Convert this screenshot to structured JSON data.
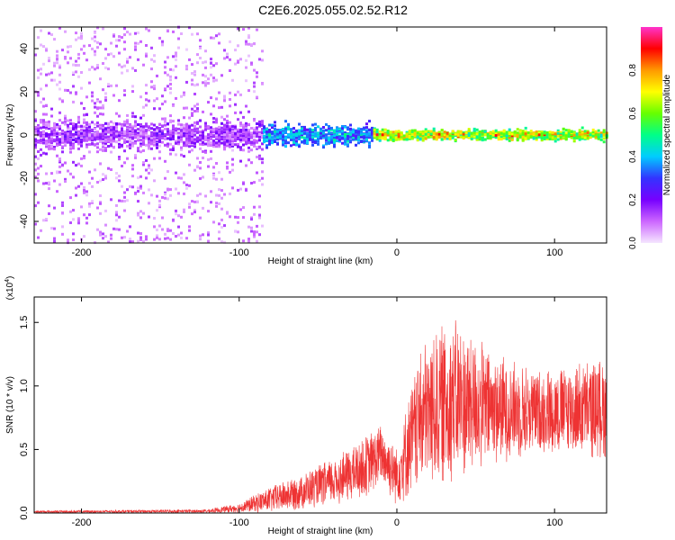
{
  "title": "C2E6.2025.055.02.52.R12",
  "chart_data": [
    {
      "type": "heatmap",
      "xlabel": "Height of straight line (km)",
      "ylabel": "Frequency (Hz)",
      "xlim": [
        -230,
        133
      ],
      "ylim": [
        -50,
        50
      ],
      "xticks": [
        -200,
        -100,
        0,
        100
      ],
      "xtick_labels": [
        "-200",
        "-100",
        "0",
        "100"
      ],
      "yticks": [
        -40,
        -20,
        0,
        20,
        40
      ],
      "ytick_labels": [
        "-40",
        "-20",
        "0",
        "20",
        "40"
      ],
      "colorbar": {
        "label": "Normalized spectral amplitude",
        "range": [
          0,
          1
        ],
        "ticks": [
          0.0,
          0.2,
          0.4,
          0.6,
          0.8
        ],
        "tick_labels": [
          "0.0",
          "0.2",
          "0.4",
          "0.6",
          "0.8"
        ],
        "colors": [
          "#f5e6ff",
          "#cc66ff",
          "#7700ff",
          "#3333ff",
          "#00ccff",
          "#00ff88",
          "#66ff00",
          "#ffff00",
          "#ff9900",
          "#ff0000",
          "#ff33cc"
        ]
      },
      "description_bands": [
        {
          "x_range": [
            -230,
            -85
          ],
          "freq_spread_hz": 50,
          "amplitude": [
            0.02,
            0.25
          ]
        },
        {
          "x_range": [
            -85,
            -15
          ],
          "freq_spread_hz": 8,
          "amplitude": [
            0.2,
            0.55
          ]
        },
        {
          "x_range": [
            -15,
            133
          ],
          "freq_spread_hz": 4,
          "amplitude": [
            0.4,
            0.95
          ]
        }
      ]
    },
    {
      "type": "line",
      "xlabel": "Height of straight line (km)",
      "ylabel": "SNR (10 * v/v)",
      "yscale_label": "(x10",
      "yscale_exp": "4",
      "yscale_close": ")",
      "xlim": [
        -230,
        133
      ],
      "ylim": [
        0,
        1.7
      ],
      "xticks": [
        -200,
        -100,
        0,
        100
      ],
      "xtick_labels": [
        "-200",
        "-100",
        "0",
        "100"
      ],
      "yticks": [
        0.0,
        0.5,
        1.0,
        1.5
      ],
      "ytick_labels": [
        "0.0",
        "0.5",
        "1.0",
        "1.5"
      ],
      "color": "#ee3333",
      "envelope": [
        {
          "x": -230,
          "low": 0.0,
          "high": 0.02
        },
        {
          "x": -120,
          "low": 0.0,
          "high": 0.03
        },
        {
          "x": -100,
          "low": 0.0,
          "high": 0.08
        },
        {
          "x": -80,
          "low": 0.0,
          "high": 0.22
        },
        {
          "x": -60,
          "low": 0.02,
          "high": 0.32
        },
        {
          "x": -40,
          "low": 0.05,
          "high": 0.45
        },
        {
          "x": -20,
          "low": 0.1,
          "high": 0.62
        },
        {
          "x": -10,
          "low": 0.2,
          "high": 0.72
        },
        {
          "x": 0,
          "low": 0.05,
          "high": 0.55
        },
        {
          "x": 15,
          "low": 0.15,
          "high": 1.35
        },
        {
          "x": 35,
          "low": 0.2,
          "high": 1.6
        },
        {
          "x": 60,
          "low": 0.35,
          "high": 1.3
        },
        {
          "x": 90,
          "low": 0.45,
          "high": 1.15
        },
        {
          "x": 133,
          "low": 0.4,
          "high": 1.25
        }
      ]
    }
  ]
}
